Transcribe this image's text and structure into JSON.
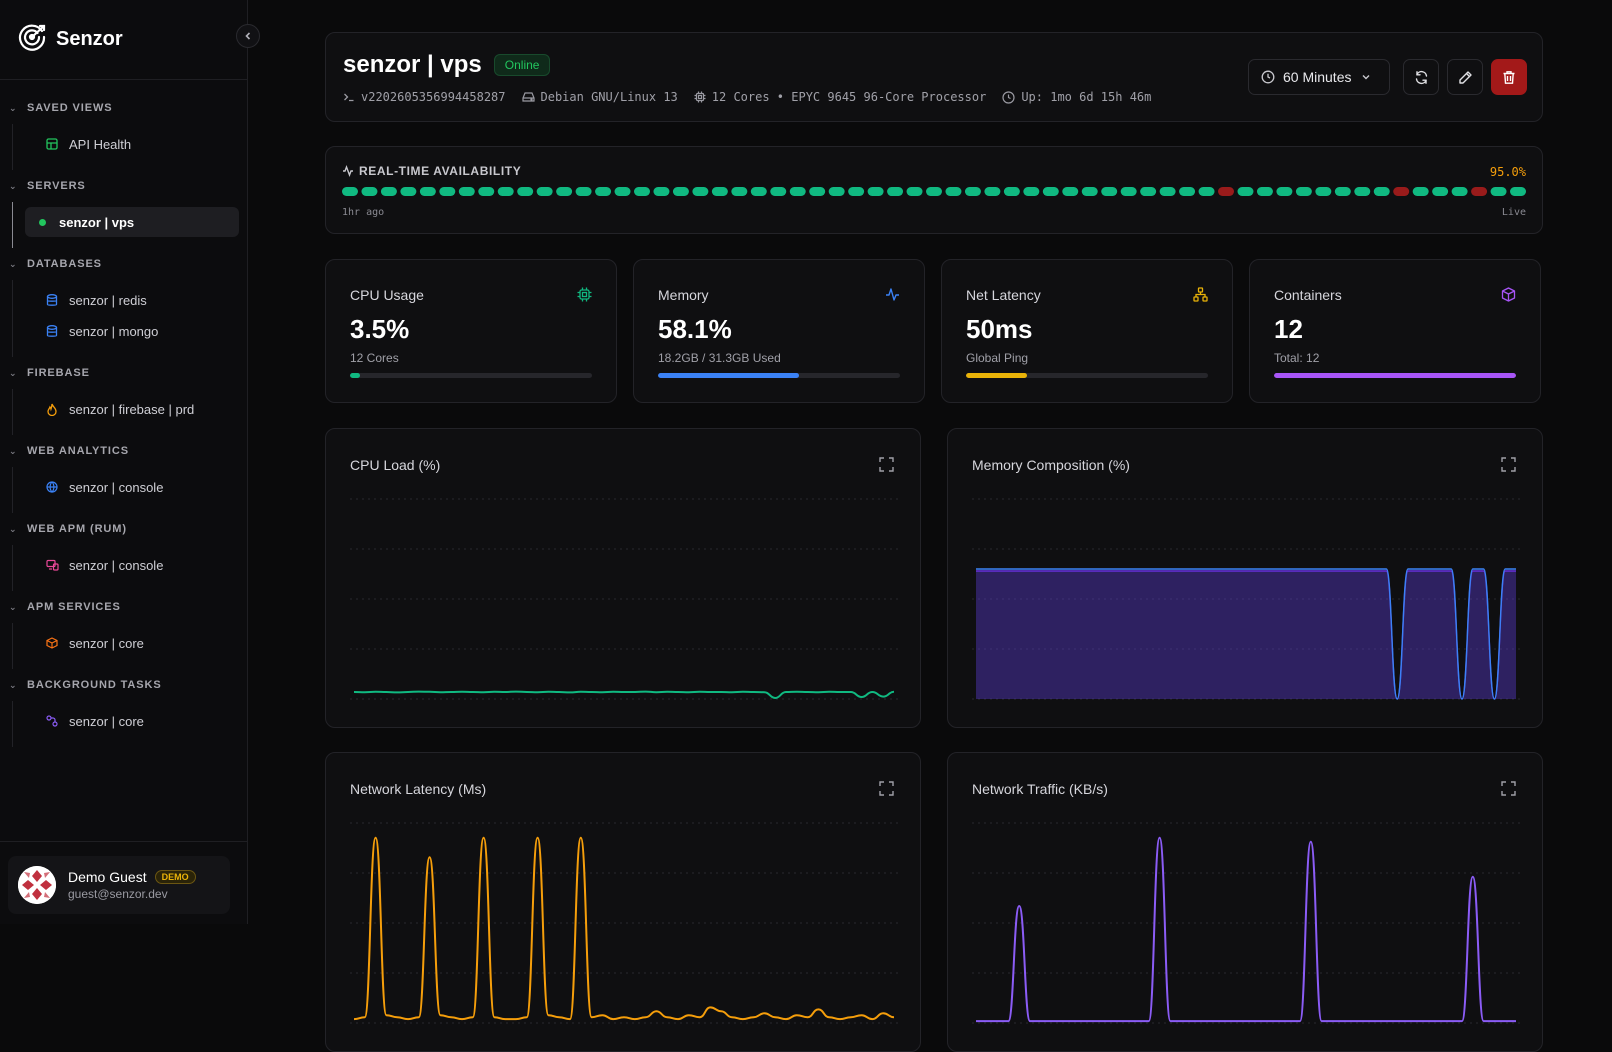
{
  "brand": {
    "name": "Senzor"
  },
  "sidebar": {
    "sections": [
      {
        "title": "SAVED VIEWS",
        "items": [
          {
            "label": "API Health",
            "icon": "dashboard-icon",
            "color": "#22c55e"
          }
        ]
      },
      {
        "title": "SERVERS",
        "items": [
          {
            "label": "senzor | vps",
            "icon": "status-dot",
            "color": "#22c55e",
            "active": true
          }
        ]
      },
      {
        "title": "DATABASES",
        "items": [
          {
            "label": "senzor | redis",
            "icon": "database-icon",
            "color": "#3b82f6"
          },
          {
            "label": "senzor | mongo",
            "icon": "database-icon",
            "color": "#3b82f6"
          }
        ]
      },
      {
        "title": "FIREBASE",
        "items": [
          {
            "label": "senzor | firebase | prd",
            "icon": "flame-icon",
            "color": "#f59e0b"
          }
        ]
      },
      {
        "title": "WEB ANALYTICS",
        "items": [
          {
            "label": "senzor | console",
            "icon": "globe-icon",
            "color": "#3b82f6"
          }
        ]
      },
      {
        "title": "WEB APM (RUM)",
        "items": [
          {
            "label": "senzor | console",
            "icon": "monitor-icon",
            "color": "#ec4899"
          }
        ]
      },
      {
        "title": "APM SERVICES",
        "items": [
          {
            "label": "senzor | core",
            "icon": "box-icon",
            "color": "#f97316"
          }
        ]
      },
      {
        "title": "BACKGROUND TASKS",
        "items": [
          {
            "label": "senzor | core",
            "icon": "workflow-icon",
            "color": "#8b5cf6"
          }
        ]
      }
    ]
  },
  "user": {
    "name": "Demo Guest",
    "badge": "DEMO",
    "email": "guest@senzor.dev"
  },
  "header": {
    "title": "senzor | vps",
    "status": "Online",
    "agent_id": "v2202605356994458287",
    "os": "Debian GNU/Linux 13",
    "cpu": "12 Cores • EPYC 9645 96-Core Processor",
    "uptime": "Up: 1mo 6d 15h 46m",
    "time_range": "60 Minutes"
  },
  "availability": {
    "title": "REAL-TIME AVAILABILITY",
    "percent": "95.0%",
    "left_label": "1hr ago",
    "right_label": "Live",
    "segments": [
      1,
      1,
      1,
      1,
      1,
      1,
      1,
      1,
      1,
      1,
      1,
      1,
      1,
      1,
      1,
      1,
      1,
      1,
      1,
      1,
      1,
      1,
      1,
      1,
      1,
      1,
      1,
      1,
      1,
      1,
      1,
      1,
      1,
      1,
      1,
      1,
      1,
      1,
      1,
      1,
      1,
      1,
      1,
      1,
      1,
      0,
      1,
      1,
      1,
      1,
      1,
      1,
      1,
      1,
      0,
      1,
      1,
      1,
      0,
      1,
      1
    ],
    "up_color": "#10b981",
    "down_color": "#991b1b"
  },
  "stats": [
    {
      "label": "CPU Usage",
      "value": "3.5%",
      "sub": "12 Cores",
      "fill": 0.04,
      "color": "#10b981",
      "icon": "cpu-icon"
    },
    {
      "label": "Memory",
      "value": "58.1%",
      "sub": "18.2GB / 31.3GB Used",
      "fill": 0.581,
      "color": "#3b82f6",
      "icon": "activity-icon"
    },
    {
      "label": "Net Latency",
      "value": "50ms",
      "sub": "Global Ping",
      "fill": 0.25,
      "color": "#eab308",
      "icon": "network-icon"
    },
    {
      "label": "Containers",
      "value": "12",
      "sub": "Total: 12",
      "fill": 1.0,
      "color": "#a855f7",
      "icon": "package-icon"
    }
  ],
  "charts": {
    "cpu": {
      "title": "CPU Load (%)"
    },
    "memory": {
      "title": "Memory Composition (%)"
    },
    "latency": {
      "title": "Network Latency (Ms)"
    },
    "traffic": {
      "title": "Network Traffic (KB/s)"
    }
  },
  "chart_data": [
    {
      "type": "line",
      "title": "CPU Load (%)",
      "ylim": [
        0,
        100
      ],
      "grid": true,
      "series": [
        {
          "values": [
            3.5,
            3.4,
            3.6,
            3.5,
            3.3,
            3.5,
            3.7,
            3.6,
            3.4,
            3.5,
            3.6,
            3.5,
            3.4,
            3.6,
            3.5,
            3.7,
            3.5,
            3.4,
            3.6,
            3.5,
            3.3,
            3.6,
            3.5,
            3.4,
            3.6,
            3.5,
            3.5,
            3.7,
            3.4,
            3.6,
            3.5,
            3.4,
            3.6,
            3.5,
            3.5,
            3.4,
            3.6,
            3.5,
            3.4,
            0.5,
            3.5,
            3.6,
            3.5,
            3.4,
            3.6,
            3.5,
            3.5,
            1.0,
            3.5,
            1.2,
            3.6
          ],
          "color": "#10b981"
        }
      ]
    },
    {
      "type": "area",
      "title": "Memory Composition (%)",
      "ylim": [
        0,
        100
      ],
      "grid": true,
      "series": [
        {
          "values": [
            64,
            64,
            64,
            64,
            64,
            64,
            64,
            64,
            64,
            64,
            64,
            64,
            64,
            64,
            64,
            64,
            64,
            64,
            64,
            64,
            64,
            64,
            64,
            64,
            64,
            64,
            64,
            64,
            64,
            64,
            64,
            64,
            64,
            64,
            64,
            64,
            64,
            64,
            64,
            0,
            64,
            64,
            64,
            64,
            64,
            0,
            64,
            64,
            0,
            64,
            64
          ],
          "color": "#6d28d9"
        },
        {
          "values": [
            65,
            65,
            65,
            65,
            65,
            65,
            65,
            65,
            65,
            65,
            65,
            65,
            65,
            65,
            65,
            65,
            65,
            65,
            65,
            65,
            65,
            65,
            65,
            65,
            65,
            65,
            65,
            65,
            65,
            65,
            65,
            65,
            65,
            65,
            65,
            65,
            65,
            65,
            65,
            0,
            65,
            65,
            65,
            65,
            65,
            0,
            65,
            65,
            0,
            65,
            65
          ],
          "color": "#3b82f6"
        }
      ]
    },
    {
      "type": "line",
      "title": "Network Latency (Ms)",
      "grid": true,
      "series": [
        {
          "values": [
            2,
            3,
            95,
            4,
            3,
            2,
            3,
            85,
            4,
            3,
            2,
            3,
            95,
            3,
            2,
            2,
            3,
            95,
            4,
            3,
            2,
            95,
            3,
            4,
            2,
            3,
            2,
            3,
            6,
            3,
            2,
            4,
            3,
            8,
            6,
            3,
            2,
            3,
            5,
            3,
            2,
            4,
            3,
            7,
            3,
            2,
            3,
            4,
            2,
            5,
            3
          ],
          "color": "#f59e0b"
        }
      ]
    },
    {
      "type": "line",
      "title": "Network Traffic (KB/s)",
      "grid": true,
      "series": [
        {
          "values": [
            1,
            1,
            1,
            1,
            60,
            1,
            1,
            1,
            1,
            1,
            1,
            1,
            1,
            1,
            1,
            1,
            1,
            95,
            1,
            1,
            1,
            1,
            1,
            1,
            1,
            1,
            1,
            1,
            1,
            1,
            1,
            93,
            1,
            1,
            1,
            1,
            1,
            1,
            1,
            1,
            1,
            1,
            1,
            1,
            1,
            1,
            75,
            1,
            1,
            1,
            1
          ],
          "color": "#8b5cf6"
        }
      ]
    }
  ]
}
